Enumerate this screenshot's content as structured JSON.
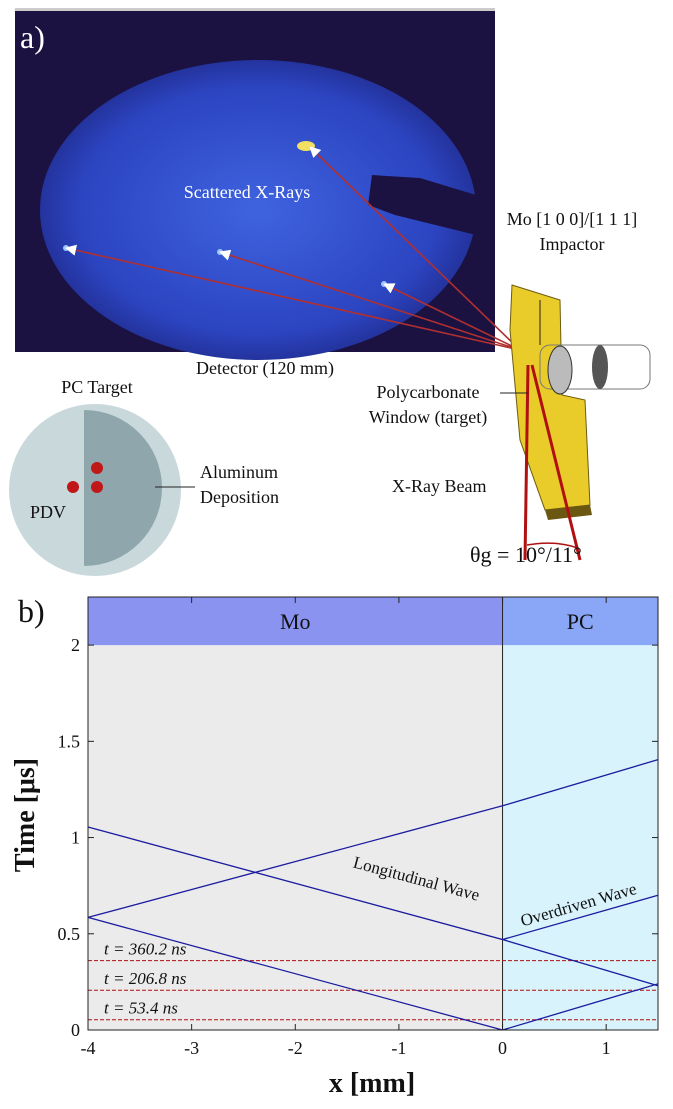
{
  "panel_a": {
    "label": "a)",
    "scattered": "Scattered X-Rays",
    "detector": "Detector (120 mm)",
    "impactor": [
      "Mo [1 0 0]/[1 1 1]",
      "Impactor"
    ],
    "window": [
      "Polycarbonate",
      "Window (target)"
    ],
    "beam": "X-Ray Beam",
    "angle": "θg = 10°/11°",
    "target": "PC Target",
    "deposition": [
      "Aluminum",
      "Deposition"
    ],
    "pdv": "PDV"
  },
  "chart_data": {
    "type": "line",
    "panel_label": "b)",
    "x_label": "x [mm]",
    "y_label": "Time [μs]",
    "xlim": [
      -4,
      1.5
    ],
    "ylim": [
      0,
      2.25
    ],
    "xticks": [
      -4,
      -3,
      -2,
      -1,
      0,
      1
    ],
    "yticks": [
      0,
      0.5,
      1,
      1.5,
      2
    ],
    "regions": [
      {
        "label": "Mo",
        "xlim": [
          -4,
          0
        ],
        "color": "#ebebeb",
        "band_color": "#8a94f0"
      },
      {
        "label": "PC",
        "xlim": [
          0,
          1.5
        ],
        "color": "#d8f3fb",
        "band_color": "#8aa6f6"
      }
    ],
    "band_start": 2,
    "series": [
      {
        "color": "#1c1ca0",
        "x": [
          0,
          -4
        ],
        "values": [
          0,
          0.585
        ]
      },
      {
        "color": "#1c1ca0",
        "x": [
          -4,
          0,
          1.5
        ],
        "values": [
          0.585,
          1.165,
          1.405
        ]
      },
      {
        "color": "#1c1ca0",
        "x": [
          -4,
          0,
          1.5
        ],
        "values": [
          1.055,
          0.47,
          0.7
        ]
      },
      {
        "color": "#1c1ca0",
        "x": [
          0,
          1.5
        ],
        "values": [
          0,
          0.24
        ]
      },
      {
        "color": "#1c1ca0",
        "x": [
          0,
          1.5
        ],
        "values": [
          0.47,
          0.23
        ]
      }
    ],
    "hlines": [
      {
        "value": 0.3602,
        "label": "t = 360.2 ns"
      },
      {
        "value": 0.2068,
        "label": "t = 206.8 ns"
      },
      {
        "value": 0.0534,
        "label": "t = 53.4 ns"
      }
    ],
    "hline_color": "#b01010",
    "annotations": [
      "Longitudinal Wave",
      "Overdriven Wave"
    ]
  }
}
